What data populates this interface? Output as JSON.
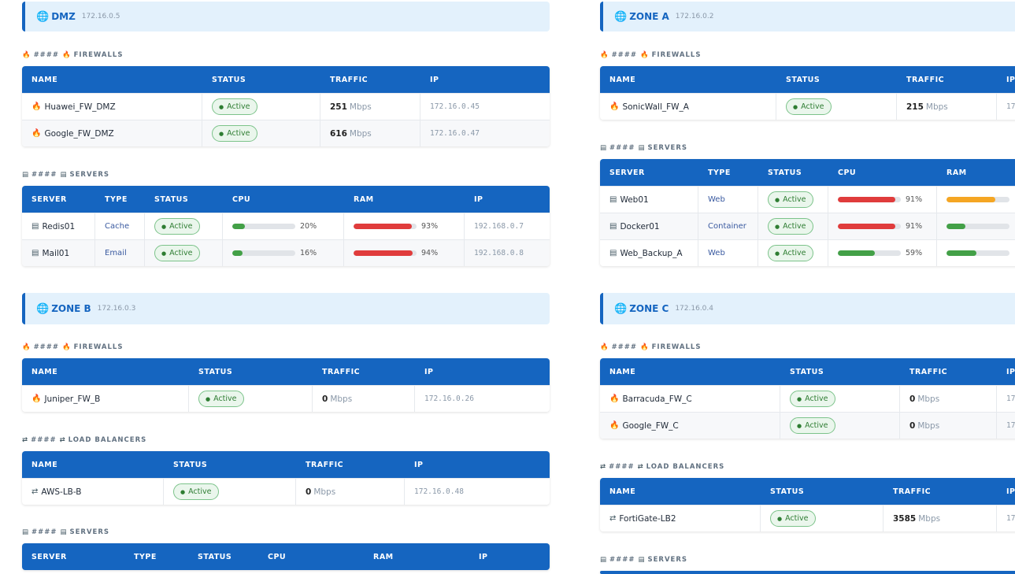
{
  "colors": {
    "primary": "#1565c0",
    "active": "#2e7d32",
    "bar_red": "#e03c3c",
    "bar_orange": "#f5a623",
    "bar_green": "#43a047"
  },
  "icons": {
    "zone": "globe-icon",
    "firewall": "flame-icon",
    "server": "server-icon",
    "load_balancer": "shuffle-icon"
  },
  "labels": {
    "hash": "####",
    "firewalls": "FIREWALLS",
    "servers": "SERVERS",
    "load_balancers": "LOAD BALANCERS"
  },
  "firewall_cols": [
    "NAME",
    "STATUS",
    "TRAFFIC",
    "IP"
  ],
  "server_cols": [
    "SERVER",
    "TYPE",
    "STATUS",
    "CPU",
    "RAM",
    "IP"
  ],
  "zones": {
    "dmz": {
      "name": "DMZ",
      "ip": "172.16.0.5",
      "firewalls": [
        {
          "name": "Huawei_FW_DMZ",
          "status": "Active",
          "traffic": "251",
          "unit": "Mbps",
          "ip": "172.16.0.45"
        },
        {
          "name": "Google_FW_DMZ",
          "status": "Active",
          "traffic": "616",
          "unit": "Mbps",
          "ip": "172.16.0.47"
        }
      ],
      "servers": [
        {
          "name": "Redis01",
          "type": "Cache",
          "status": "Active",
          "cpu": 20,
          "cpu_label": "20%",
          "ram": 93,
          "ram_label": "93%",
          "ip": "192.168.0.7"
        },
        {
          "name": "Mail01",
          "type": "Email",
          "status": "Active",
          "cpu": 16,
          "cpu_label": "16%",
          "ram": 94,
          "ram_label": "94%",
          "ip": "192.168.0.8"
        }
      ]
    },
    "zone_a": {
      "name": "ZONE A",
      "ip": "172.16.0.2",
      "firewalls": [
        {
          "name": "SonicWall_FW_A",
          "status": "Active",
          "traffic": "215",
          "unit": "Mbps",
          "ip": "17"
        }
      ],
      "servers": [
        {
          "name": "Web01",
          "type": "Web",
          "status": "Active",
          "cpu": 91,
          "cpu_label": "91%",
          "ram": 78
        },
        {
          "name": "Docker01",
          "type": "Container",
          "status": "Active",
          "cpu": 91,
          "cpu_label": "91%",
          "ram": 30
        },
        {
          "name": "Web_Backup_A",
          "type": "Web",
          "status": "Active",
          "cpu": 59,
          "cpu_label": "59%",
          "ram": 48
        }
      ]
    },
    "zone_b": {
      "name": "ZONE B",
      "ip": "172.16.0.3",
      "firewalls": [
        {
          "name": "Juniper_FW_B",
          "status": "Active",
          "traffic": "0",
          "unit": "Mbps",
          "ip": "172.16.0.26"
        }
      ],
      "load_balancers": [
        {
          "name": "AWS-LB-B",
          "status": "Active",
          "traffic": "0",
          "unit": "Mbps",
          "ip": "172.16.0.48"
        }
      ]
    },
    "zone_c": {
      "name": "ZONE C",
      "ip": "172.16.0.4",
      "firewalls": [
        {
          "name": "Barracuda_FW_C",
          "status": "Active",
          "traffic": "0",
          "unit": "Mbps",
          "ip": "17"
        },
        {
          "name": "Google_FW_C",
          "status": "Active",
          "traffic": "0",
          "unit": "Mbps",
          "ip": "17"
        }
      ],
      "load_balancers": [
        {
          "name": "FortiGate-LB2",
          "status": "Active",
          "traffic": "3585",
          "unit": "Mbps",
          "ip": "17"
        }
      ]
    }
  }
}
